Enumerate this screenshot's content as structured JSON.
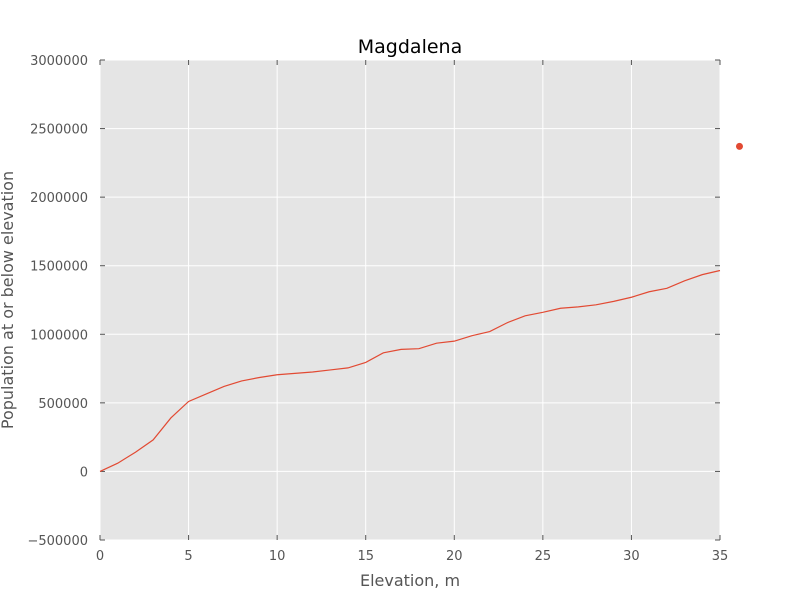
{
  "chart_data": {
    "type": "line",
    "title": "Magdalena",
    "xlabel": "Elevation, m",
    "ylabel": "Population at or below elevation",
    "xlim": [
      0,
      35
    ],
    "ylim": [
      -500000,
      3000000
    ],
    "xticks": [
      0,
      5,
      10,
      15,
      20,
      25,
      30,
      35
    ],
    "yticks": [
      -500000,
      0,
      500000,
      1000000,
      1500000,
      2000000,
      2500000,
      3000000
    ],
    "xtick_labels": [
      "0",
      "5",
      "10",
      "15",
      "20",
      "25",
      "30",
      "35"
    ],
    "ytick_labels": [
      "−500000",
      "0",
      "500000",
      "1000000",
      "1500000",
      "2000000",
      "2500000",
      "3000000"
    ],
    "grid": true,
    "background": "#e5e5e5",
    "series": [
      {
        "color": "#e24a33",
        "x": [
          0,
          1,
          2,
          3,
          4,
          5,
          6,
          7,
          8,
          9,
          10,
          11,
          12,
          13,
          14,
          15,
          16,
          17,
          18,
          19,
          20,
          21,
          22,
          23,
          24,
          25,
          26,
          27,
          28,
          29,
          30,
          31,
          32,
          33,
          34,
          35
        ],
        "y": [
          0,
          60000,
          140000,
          230000,
          390000,
          510000,
          565000,
          620000,
          660000,
          685000,
          705000,
          715000,
          725000,
          740000,
          755000,
          795000,
          865000,
          890000,
          895000,
          935000,
          950000,
          990000,
          1020000,
          1085000,
          1135000,
          1160000,
          1190000,
          1200000,
          1215000,
          1240000,
          1270000,
          1310000,
          1335000,
          1390000,
          1435000,
          1465000
        ]
      }
    ],
    "points": [
      {
        "x": 36.1,
        "y": 2370000,
        "color": "#e24a33"
      }
    ]
  }
}
